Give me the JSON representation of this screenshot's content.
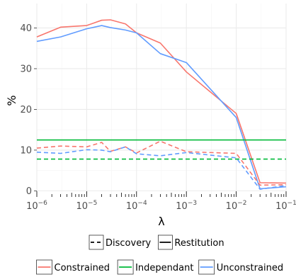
{
  "chart_data": {
    "type": "line",
    "xlabel": "λ",
    "ylabel": "%",
    "xscale": "log",
    "xlim": [
      1e-06,
      0.1
    ],
    "ylim": [
      -1.5,
      46
    ],
    "x_ticks": [
      {
        "value": 1e-06,
        "base": "10",
        "exp": "−6"
      },
      {
        "value": 1e-05,
        "base": "10",
        "exp": "−5"
      },
      {
        "value": 0.0001,
        "base": "10",
        "exp": "−4"
      },
      {
        "value": 0.001,
        "base": "10",
        "exp": "−3"
      },
      {
        "value": 0.01,
        "base": "10",
        "exp": "−2"
      },
      {
        "value": 0.1,
        "base": "10",
        "exp": "−1"
      }
    ],
    "y_ticks": [
      {
        "value": 0,
        "label": "0"
      },
      {
        "value": 10,
        "label": "10"
      },
      {
        "value": 20,
        "label": "20"
      },
      {
        "value": 30,
        "label": "30"
      },
      {
        "value": 40,
        "label": "40"
      }
    ],
    "grid": true,
    "legend_linetype": {
      "placement": "bottom",
      "entries": [
        {
          "label": "Discovery",
          "dash": "dashed"
        },
        {
          "label": "Restitution",
          "dash": "solid"
        }
      ]
    },
    "legend_method": {
      "placement": "bottom",
      "entries": [
        {
          "label": "Constrained",
          "color": "#F8766D"
        },
        {
          "label": "Independant",
          "color": "#00BA38"
        },
        {
          "label": "Unconstrained",
          "color": "#619CFF"
        }
      ]
    },
    "series": [
      {
        "method": "Constrained",
        "measure": "Restitution",
        "color": "#F8766D",
        "dash": "solid",
        "x": [
          1e-06,
          3e-06,
          1e-05,
          2e-05,
          3e-05,
          6e-05,
          0.0001,
          0.0003,
          0.001,
          0.01,
          0.03,
          0.1
        ],
        "y": [
          37.8,
          40.2,
          40.6,
          41.9,
          42.0,
          41.0,
          38.8,
          36.3,
          29.2,
          19.0,
          2.0,
          1.9
        ]
      },
      {
        "method": "Unconstrained",
        "measure": "Restitution",
        "color": "#619CFF",
        "dash": "solid",
        "x": [
          1e-06,
          3e-06,
          1e-05,
          2e-05,
          3e-05,
          6e-05,
          0.0001,
          0.0003,
          0.001,
          0.01,
          0.03,
          0.1
        ],
        "y": [
          36.7,
          37.8,
          39.8,
          40.6,
          40.1,
          39.5,
          38.8,
          33.7,
          31.5,
          18.0,
          0.5,
          1.0
        ]
      },
      {
        "method": "Independant",
        "measure": "Restitution",
        "color": "#00BA38",
        "dash": "solid",
        "x": [
          1e-06,
          0.1
        ],
        "y": [
          12.5,
          12.5
        ]
      },
      {
        "method": "Independant",
        "measure": "Discovery",
        "color": "#00BA38",
        "dash": "dashed",
        "x": [
          1e-06,
          0.1
        ],
        "y": [
          7.8,
          7.8
        ]
      },
      {
        "method": "Constrained",
        "measure": "Discovery",
        "color": "#F8766D",
        "dash": "dashed",
        "x": [
          1e-06,
          3e-06,
          1e-05,
          2e-05,
          3e-05,
          6e-05,
          0.0001,
          0.0003,
          0.001,
          0.01,
          0.03,
          0.1
        ],
        "y": [
          10.5,
          11.0,
          10.8,
          11.9,
          9.7,
          10.8,
          9.3,
          12.2,
          9.6,
          9.2,
          1.4,
          1.5
        ]
      },
      {
        "method": "Unconstrained",
        "measure": "Discovery",
        "color": "#619CFF",
        "dash": "dashed",
        "x": [
          1e-06,
          3e-06,
          1e-05,
          2e-05,
          3e-05,
          6e-05,
          0.0001,
          0.0003,
          0.001,
          0.01,
          0.03,
          0.1
        ],
        "y": [
          9.5,
          9.2,
          10.1,
          10.0,
          9.6,
          10.8,
          9.1,
          8.6,
          9.4,
          8.1,
          0.4,
          1.3
        ]
      }
    ]
  }
}
